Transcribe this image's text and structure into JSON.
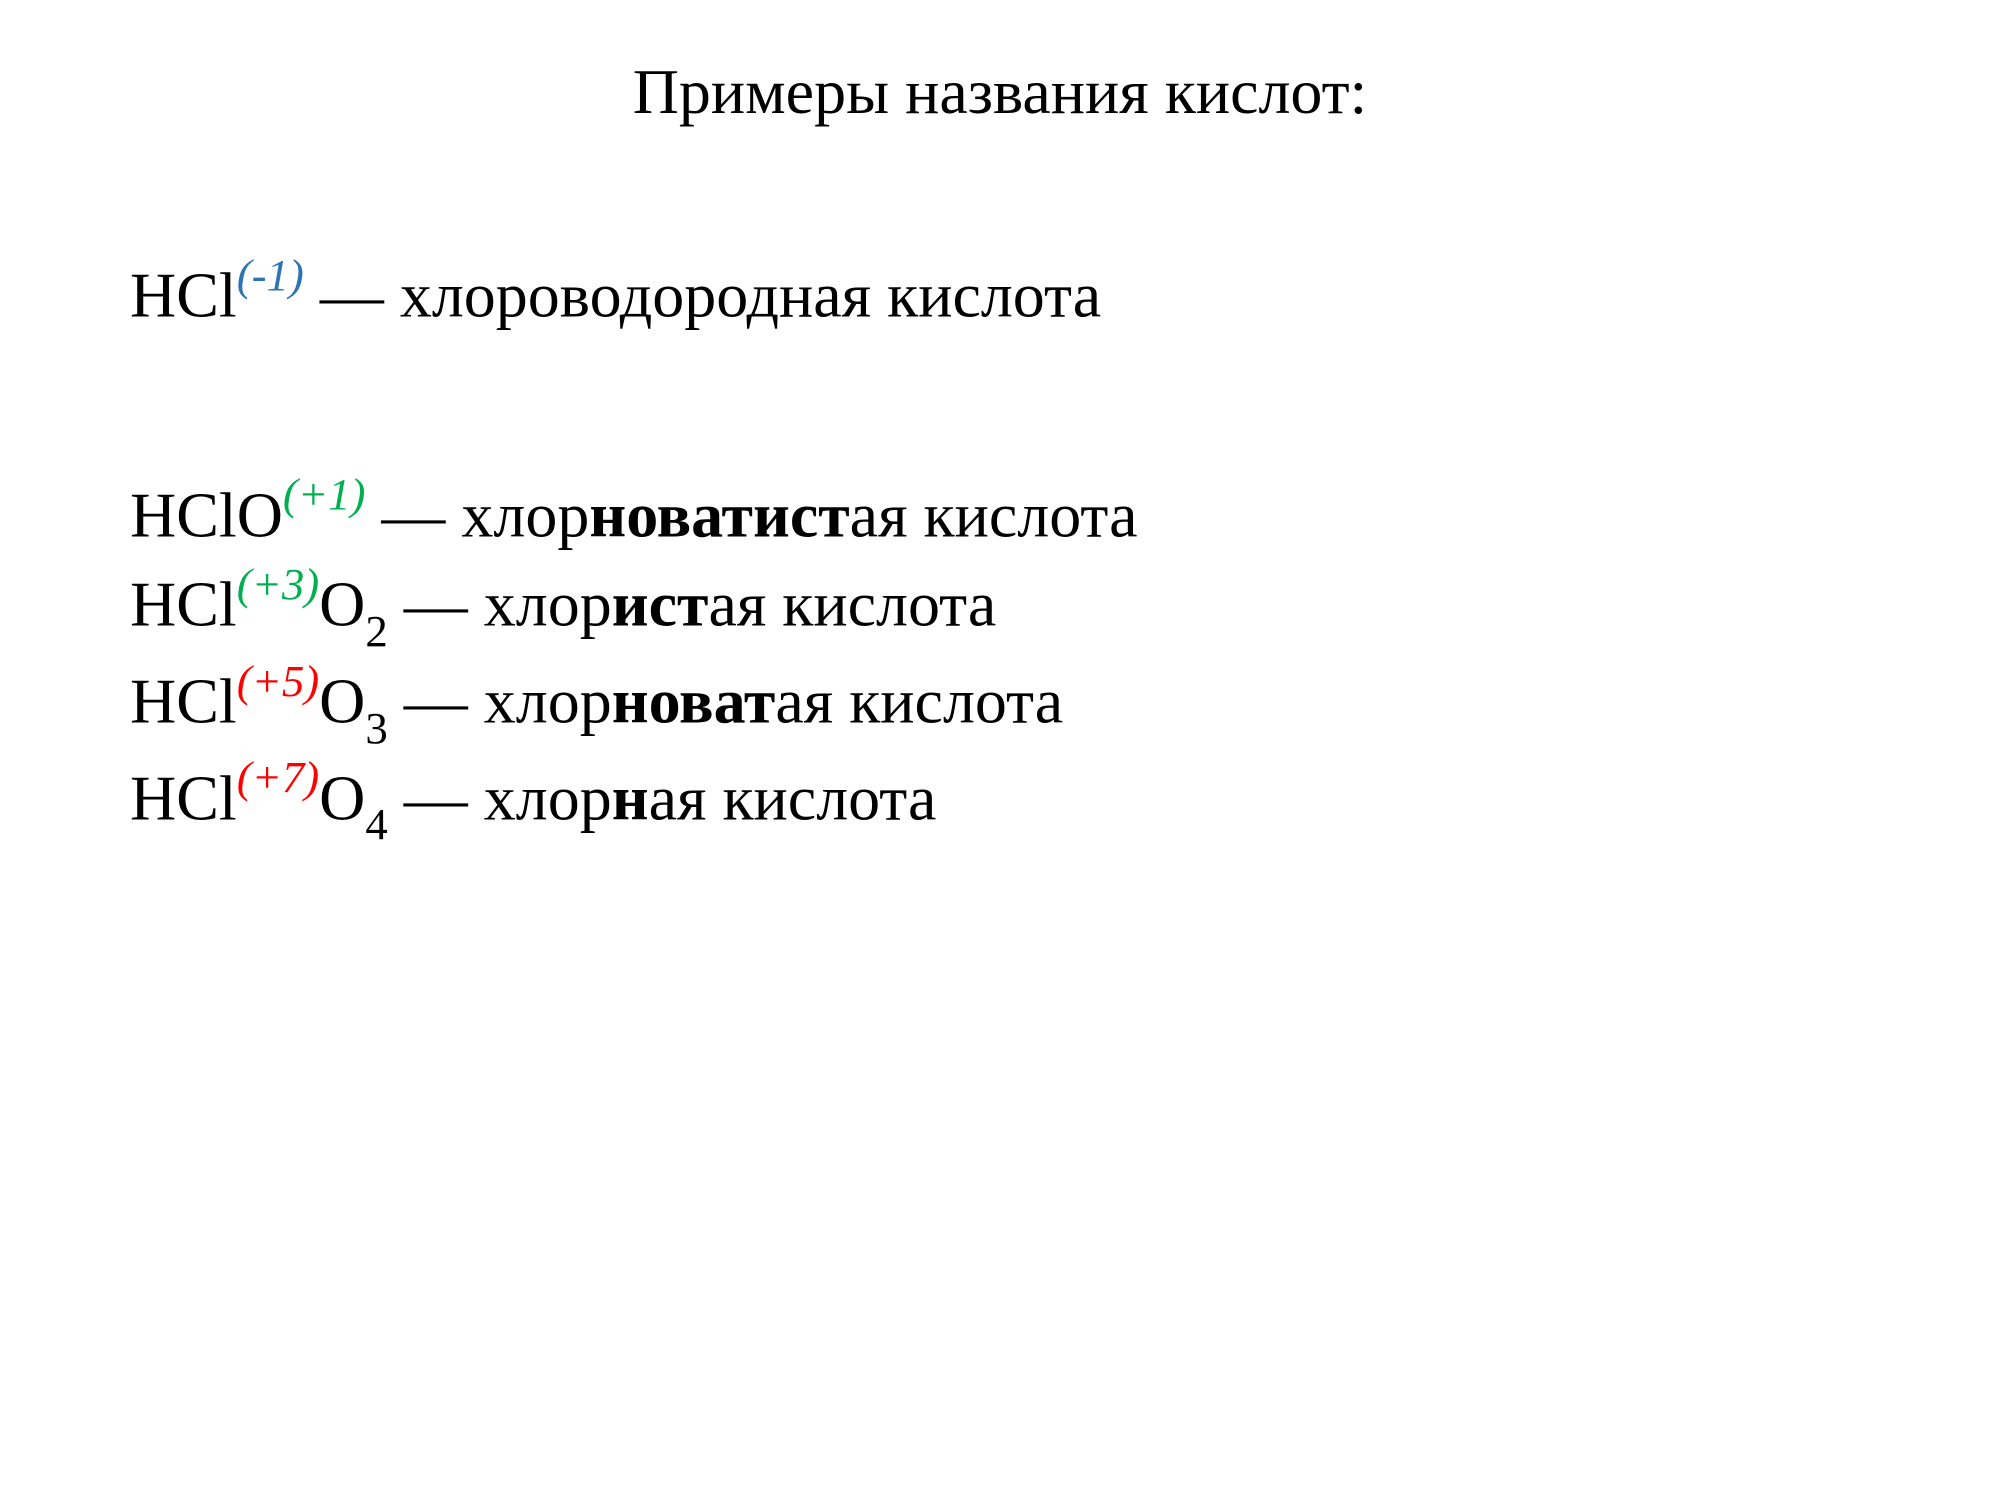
{
  "title": "Примеры названия кислот:",
  "colors": {
    "text": "#000000",
    "background": "#ffffff",
    "ox_blue": "#2e74b5",
    "ox_green": "#00b050",
    "ox_red": "#ff0000"
  },
  "typography": {
    "font_family": "Times New Roman",
    "title_fontsize_pt": 48,
    "body_fontsize_pt": 48,
    "superscript_scale": 0.7,
    "subscript_scale": 0.7
  },
  "lines": [
    {
      "formula": {
        "base": "HCl",
        "oxidation": "(-1)",
        "ox_color": "#2e74b5",
        "suffix": ""
      },
      "dash": " — ",
      "name_parts": {
        "pre": "хлороводород",
        "bold": "",
        "post": "н",
        "tail": "ая кислота"
      }
    },
    {
      "formula": {
        "base": "HClO",
        "oxidation": "(+1)",
        "ox_color": "#00b050",
        "suffix": ""
      },
      "dash": " — ",
      "name_parts": {
        "pre": "хлор",
        "bold": "новатист",
        "post": "",
        "tail": "ая кислота"
      }
    },
    {
      "formula": {
        "base": "HCl",
        "oxidation": "(+3)",
        "ox_color": "#00b050",
        "suffix_el": "O",
        "suffix_sub": "2"
      },
      "dash": " — ",
      "name_parts": {
        "pre": "хлор",
        "bold": "ист",
        "post": "",
        "tail": "ая кислота"
      }
    },
    {
      "formula": {
        "base": "HCl",
        "oxidation": "(+5)",
        "ox_color": "#ff0000",
        "suffix_el": "O",
        "suffix_sub": "3"
      },
      "dash": " — ",
      "name_parts": {
        "pre": "хлор",
        "bold": "новат",
        "post": "",
        "tail": "ая кислота"
      }
    },
    {
      "formula": {
        "base": "HCl",
        "oxidation": "(+7)",
        "ox_color": "#ff0000",
        "suffix_el": "O",
        "suffix_sub": "4"
      },
      "dash": " — ",
      "name_parts": {
        "pre": "хлор",
        "bold": "н",
        "post": "",
        "tail": "ая кислота"
      }
    }
  ]
}
